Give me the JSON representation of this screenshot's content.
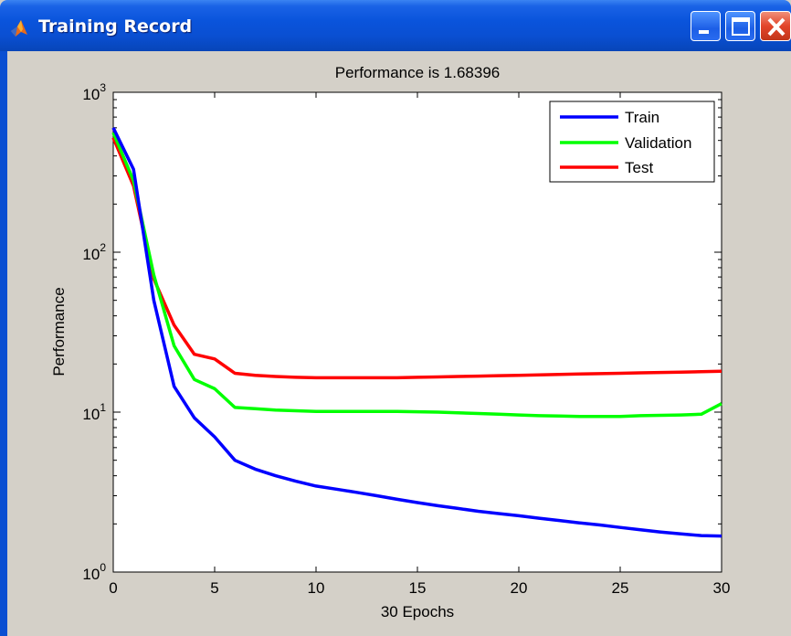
{
  "window": {
    "title": "Training Record",
    "buttons": {
      "minimize": "minimize-icon",
      "maximize": "maximize-icon",
      "close": "close-icon"
    },
    "colors": {
      "titlebar": "#0a54dc",
      "client": "#d4d0c8",
      "close": "#e2452a"
    }
  },
  "chart_data": {
    "type": "line",
    "title": "Performance is 1.68396",
    "xlabel": "30 Epochs",
    "ylabel": "Performance",
    "xlim": [
      0,
      30
    ],
    "ylim": [
      1,
      1000
    ],
    "yscale": "log",
    "xticks": [
      0,
      5,
      10,
      15,
      20,
      25,
      30
    ],
    "yticks": [
      {
        "base": "10",
        "exp": "0",
        "value": 1
      },
      {
        "base": "10",
        "exp": "1",
        "value": 10
      },
      {
        "base": "10",
        "exp": "2",
        "value": 100
      },
      {
        "base": "10",
        "exp": "3",
        "value": 1000
      }
    ],
    "grid": false,
    "legend_position": "top-right",
    "x": [
      0,
      1,
      2,
      3,
      4,
      5,
      6,
      7,
      8,
      9,
      10,
      11,
      12,
      13,
      14,
      15,
      16,
      17,
      18,
      19,
      20,
      21,
      22,
      23,
      24,
      25,
      26,
      27,
      28,
      29,
      30
    ],
    "series": [
      {
        "name": "Train",
        "color": "#0000ff",
        "values": [
          600,
          330,
          50,
          14.5,
          9.2,
          7,
          5,
          4.4,
          4,
          3.7,
          3.45,
          3.3,
          3.15,
          3,
          2.85,
          2.72,
          2.6,
          2.5,
          2.4,
          2.32,
          2.25,
          2.17,
          2.1,
          2.03,
          1.97,
          1.9,
          1.84,
          1.78,
          1.73,
          1.69,
          1.68
        ]
      },
      {
        "name": "Validation",
        "color": "#00ff00",
        "values": [
          560,
          280,
          72,
          26,
          16,
          14,
          10.7,
          10.5,
          10.3,
          10.2,
          10.1,
          10.1,
          10.1,
          10.1,
          10.1,
          10.05,
          10,
          9.9,
          9.8,
          9.7,
          9.6,
          9.5,
          9.45,
          9.4,
          9.4,
          9.4,
          9.5,
          9.55,
          9.6,
          9.7,
          11.3
        ]
      },
      {
        "name": "Test",
        "color": "#ff0000",
        "values": [
          520,
          260,
          68,
          35,
          23,
          21.5,
          17.5,
          17,
          16.7,
          16.5,
          16.4,
          16.4,
          16.4,
          16.4,
          16.4,
          16.5,
          16.6,
          16.7,
          16.8,
          16.9,
          17,
          17.1,
          17.2,
          17.3,
          17.4,
          17.5,
          17.6,
          17.7,
          17.8,
          17.9,
          18
        ]
      }
    ]
  }
}
